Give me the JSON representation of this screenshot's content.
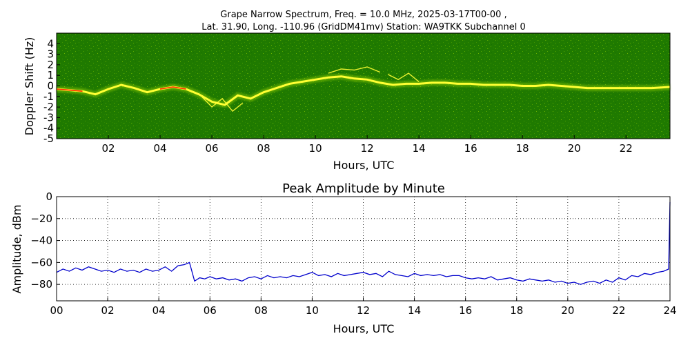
{
  "figure": {
    "title_line1": "Grape Narrow Spectrum, Freq. = 10.0 MHz, 2025-03-17T00-00 ,",
    "title_line2": "Lat.  31.90, Long. -110.96 (GridDM41mv) Station: WA9TKK Subchannel 0"
  },
  "chart_data": [
    {
      "type": "heatmap",
      "title": "",
      "xlabel": "Hours, UTC",
      "ylabel": "Doppler Shift (Hz)",
      "xlim": [
        0,
        23.7
      ],
      "ylim": [
        -5,
        5
      ],
      "xticks": [
        "02",
        "04",
        "06",
        "08",
        "10",
        "12",
        "14",
        "16",
        "18",
        "20",
        "22"
      ],
      "xtick_values": [
        2,
        4,
        6,
        8,
        10,
        12,
        14,
        16,
        18,
        20,
        22
      ],
      "yticks": [
        "4",
        "3",
        "2",
        "1",
        "0",
        "-1",
        "-2",
        "-3",
        "-4",
        "-5"
      ],
      "ytick_values": [
        4,
        3,
        2,
        1,
        0,
        -1,
        -2,
        -3,
        -4,
        -5
      ],
      "grid": false,
      "colors": {
        "background": "#1f7a00",
        "mid": "#7fbf00",
        "trace": "#ffff33",
        "peak": "#ff2a00"
      },
      "trace": {
        "x": [
          0,
          0.5,
          1,
          1.5,
          2,
          2.5,
          3,
          3.5,
          4,
          4.5,
          5,
          5.5,
          6,
          6.5,
          7,
          7.5,
          8,
          8.5,
          9,
          9.5,
          10,
          10.5,
          11,
          11.5,
          12,
          12.5,
          13,
          13.5,
          14,
          14.5,
          15,
          15.5,
          16,
          16.5,
          17,
          17.5,
          18,
          18.5,
          19,
          19.5,
          20,
          20.5,
          21,
          21.5,
          22,
          22.5,
          23,
          23.7
        ],
        "y": [
          -0.3,
          -0.4,
          -0.5,
          -0.8,
          -0.3,
          0.1,
          -0.2,
          -0.6,
          -0.3,
          -0.1,
          -0.3,
          -0.8,
          -1.5,
          -1.8,
          -0.9,
          -1.2,
          -0.6,
          -0.2,
          0.2,
          0.4,
          0.6,
          0.8,
          0.9,
          0.7,
          0.6,
          0.3,
          0.1,
          0.2,
          0.2,
          0.3,
          0.3,
          0.2,
          0.2,
          0.1,
          0.1,
          0.1,
          0.0,
          0.0,
          0.1,
          0.0,
          -0.1,
          -0.2,
          -0.2,
          -0.2,
          -0.2,
          -0.2,
          -0.2,
          -0.1
        ]
      },
      "secondary_traces": [
        {
          "x": [
            10.5,
            11,
            11.5,
            12,
            12.5
          ],
          "y": [
            1.2,
            1.6,
            1.5,
            1.8,
            1.3
          ]
        },
        {
          "x": [
            12.8,
            13.2,
            13.6,
            14.0
          ],
          "y": [
            1.1,
            0.6,
            1.2,
            0.4
          ]
        },
        {
          "x": [
            5.6,
            6.0,
            6.4,
            6.8,
            7.2
          ],
          "y": [
            -1.0,
            -2.0,
            -1.2,
            -2.4,
            -1.6
          ]
        }
      ]
    },
    {
      "type": "line",
      "title": "Peak Amplitude by Minute",
      "xlabel": "Hours, UTC",
      "ylabel": "Amplitude, dBm",
      "xlim": [
        0,
        24
      ],
      "ylim": [
        -95,
        0
      ],
      "xticks": [
        "00",
        "02",
        "04",
        "06",
        "08",
        "10",
        "12",
        "14",
        "16",
        "18",
        "20",
        "22",
        "24"
      ],
      "xtick_values": [
        0,
        2,
        4,
        6,
        8,
        10,
        12,
        14,
        16,
        18,
        20,
        22,
        24
      ],
      "yticks": [
        "0",
        "−20",
        "−40",
        "−60",
        "−80"
      ],
      "ytick_values": [
        0,
        -20,
        -40,
        -60,
        -80
      ],
      "grid": true,
      "line_color": "#0000cc",
      "series": [
        {
          "x": [
            0,
            0.25,
            0.5,
            0.75,
            1,
            1.25,
            1.5,
            1.75,
            2,
            2.25,
            2.5,
            2.75,
            3,
            3.25,
            3.5,
            3.75,
            4,
            4.25,
            4.5,
            4.75,
            5,
            5.2,
            5.4,
            5.6,
            5.8,
            6,
            6.25,
            6.5,
            6.75,
            7,
            7.25,
            7.5,
            7.75,
            8,
            8.25,
            8.5,
            8.75,
            9,
            9.25,
            9.5,
            9.75,
            10,
            10.25,
            10.5,
            10.75,
            11,
            11.25,
            11.5,
            11.75,
            12,
            12.25,
            12.5,
            12.75,
            13,
            13.25,
            13.5,
            13.75,
            14,
            14.25,
            14.5,
            14.75,
            15,
            15.25,
            15.5,
            15.75,
            16,
            16.25,
            16.5,
            16.75,
            17,
            17.25,
            17.5,
            17.75,
            18,
            18.25,
            18.5,
            18.75,
            19,
            19.25,
            19.5,
            19.75,
            20,
            20.25,
            20.5,
            20.75,
            21,
            21.25,
            21.5,
            21.75,
            22,
            22.25,
            22.5,
            22.75,
            23,
            23.25,
            23.5,
            23.75,
            23.95,
            24
          ],
          "y": [
            -69,
            -66,
            -68,
            -65,
            -67,
            -64,
            -66,
            -68,
            -67,
            -69,
            -66,
            -68,
            -67,
            -69,
            -66,
            -68,
            -67,
            -64,
            -68,
            -63,
            -62,
            -60,
            -77,
            -74,
            -75,
            -73,
            -75,
            -74,
            -76,
            -75,
            -77,
            -74,
            -73,
            -75,
            -72,
            -74,
            -73,
            -74,
            -72,
            -73,
            -71,
            -69,
            -72,
            -71,
            -73,
            -70,
            -72,
            -71,
            -70,
            -69,
            -71,
            -70,
            -73,
            -68,
            -71,
            -72,
            -73,
            -70,
            -72,
            -71,
            -72,
            -71,
            -73,
            -72,
            -72,
            -74,
            -75,
            -74,
            -75,
            -73,
            -76,
            -75,
            -74,
            -76,
            -77,
            -75,
            -76,
            -77,
            -76,
            -78,
            -77,
            -79,
            -78,
            -80,
            -78,
            -77,
            -79,
            -76,
            -78,
            -74,
            -76,
            -72,
            -73,
            -70,
            -71,
            -69,
            -68,
            -66,
            -5
          ]
        }
      ]
    }
  ]
}
